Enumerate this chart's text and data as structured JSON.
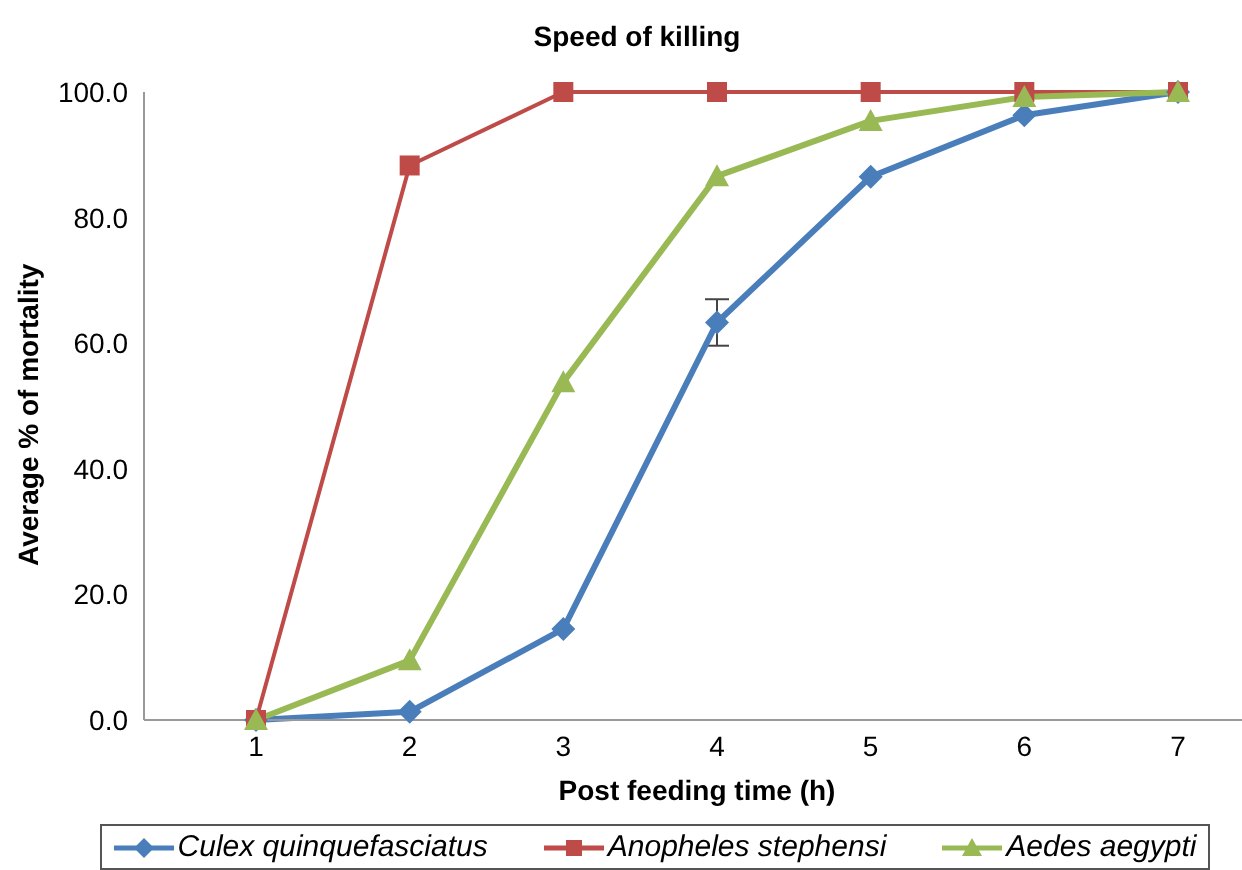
{
  "chart_data": {
    "type": "line",
    "title": "Speed of killing",
    "xlabel": "Post feeding time (h)",
    "ylabel": "Average % of mortality",
    "categories": [
      "1",
      "2",
      "3",
      "4",
      "5",
      "6",
      "7"
    ],
    "series": [
      {
        "name": "Culex quinquefasciatus",
        "color": "#4a7ebb",
        "marker": "diamond",
        "values": [
          0,
          1.3,
          14.5,
          63.3,
          86.5,
          96.3,
          100
        ],
        "errors": [
          null,
          null,
          null,
          3.7,
          null,
          null,
          null
        ]
      },
      {
        "name": "Anopheles stephensi",
        "color": "#be4b48",
        "marker": "square",
        "values": [
          0,
          88.3,
          100,
          100,
          100,
          100,
          100
        ]
      },
      {
        "name": "Aedes aegypti",
        "color": "#98b954",
        "marker": "triangle",
        "values": [
          0,
          9.5,
          53.8,
          86.6,
          95.4,
          99.2,
          100
        ]
      }
    ],
    "ylim": [
      0,
      100
    ],
    "yticks": [
      {
        "value": 0,
        "label": "0.0"
      },
      {
        "value": 20,
        "label": "20.0"
      },
      {
        "value": 40,
        "label": "40.0"
      },
      {
        "value": 60,
        "label": "60.0"
      },
      {
        "value": 80,
        "label": "80.0"
      },
      {
        "value": 100,
        "label": "100.0"
      }
    ],
    "grid": false,
    "legend": "bottom",
    "line_style": "solid"
  }
}
